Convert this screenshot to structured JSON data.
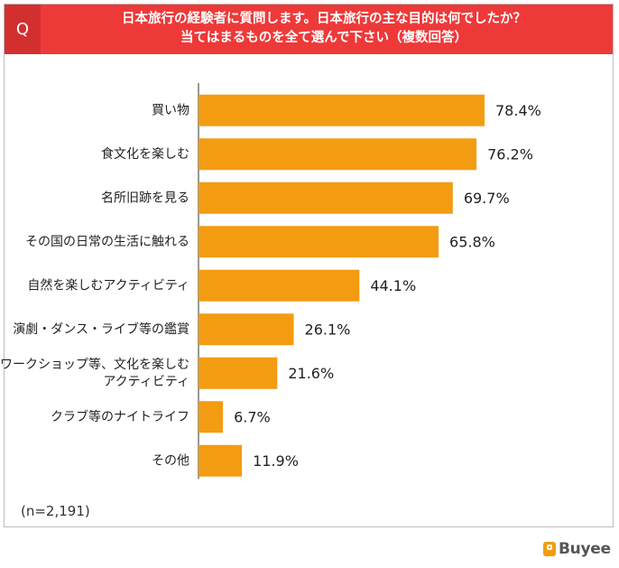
{
  "header": {
    "q_label": "Q",
    "question_line1": "日本旅行の経験者に質問します。日本旅行の主な目的は何でしたか？",
    "question_line2": "当てはまるものを全て選んで下さい（複数回答）"
  },
  "note": "(n=2,191)",
  "logo_text": "Buyee",
  "colors": {
    "bar": "#f39c12",
    "header": "#ee3939",
    "q_box": "#d32f2f"
  },
  "chart_data": {
    "type": "bar",
    "orientation": "horizontal",
    "categories": [
      "買い物",
      "食文化を楽しむ",
      "名所旧跡を見る",
      "その国の日常の生活に触れる",
      "自然を楽しむアクティビティ",
      "演劇・ダンス・ライブ等の鑑賞",
      "ワークショップ等、文化を楽しむ\nアクティビティ",
      "クラブ等のナイトライフ",
      "その他"
    ],
    "values": [
      78.4,
      76.2,
      69.7,
      65.8,
      44.1,
      26.1,
      21.6,
      6.7,
      11.9
    ],
    "value_labels": [
      "78.4%",
      "76.2%",
      "69.7%",
      "65.8%",
      "44.1%",
      "26.1%",
      "21.6%",
      "6.7%",
      "11.9%"
    ],
    "xlim": [
      0,
      100
    ],
    "grid": false,
    "legend": "none"
  }
}
